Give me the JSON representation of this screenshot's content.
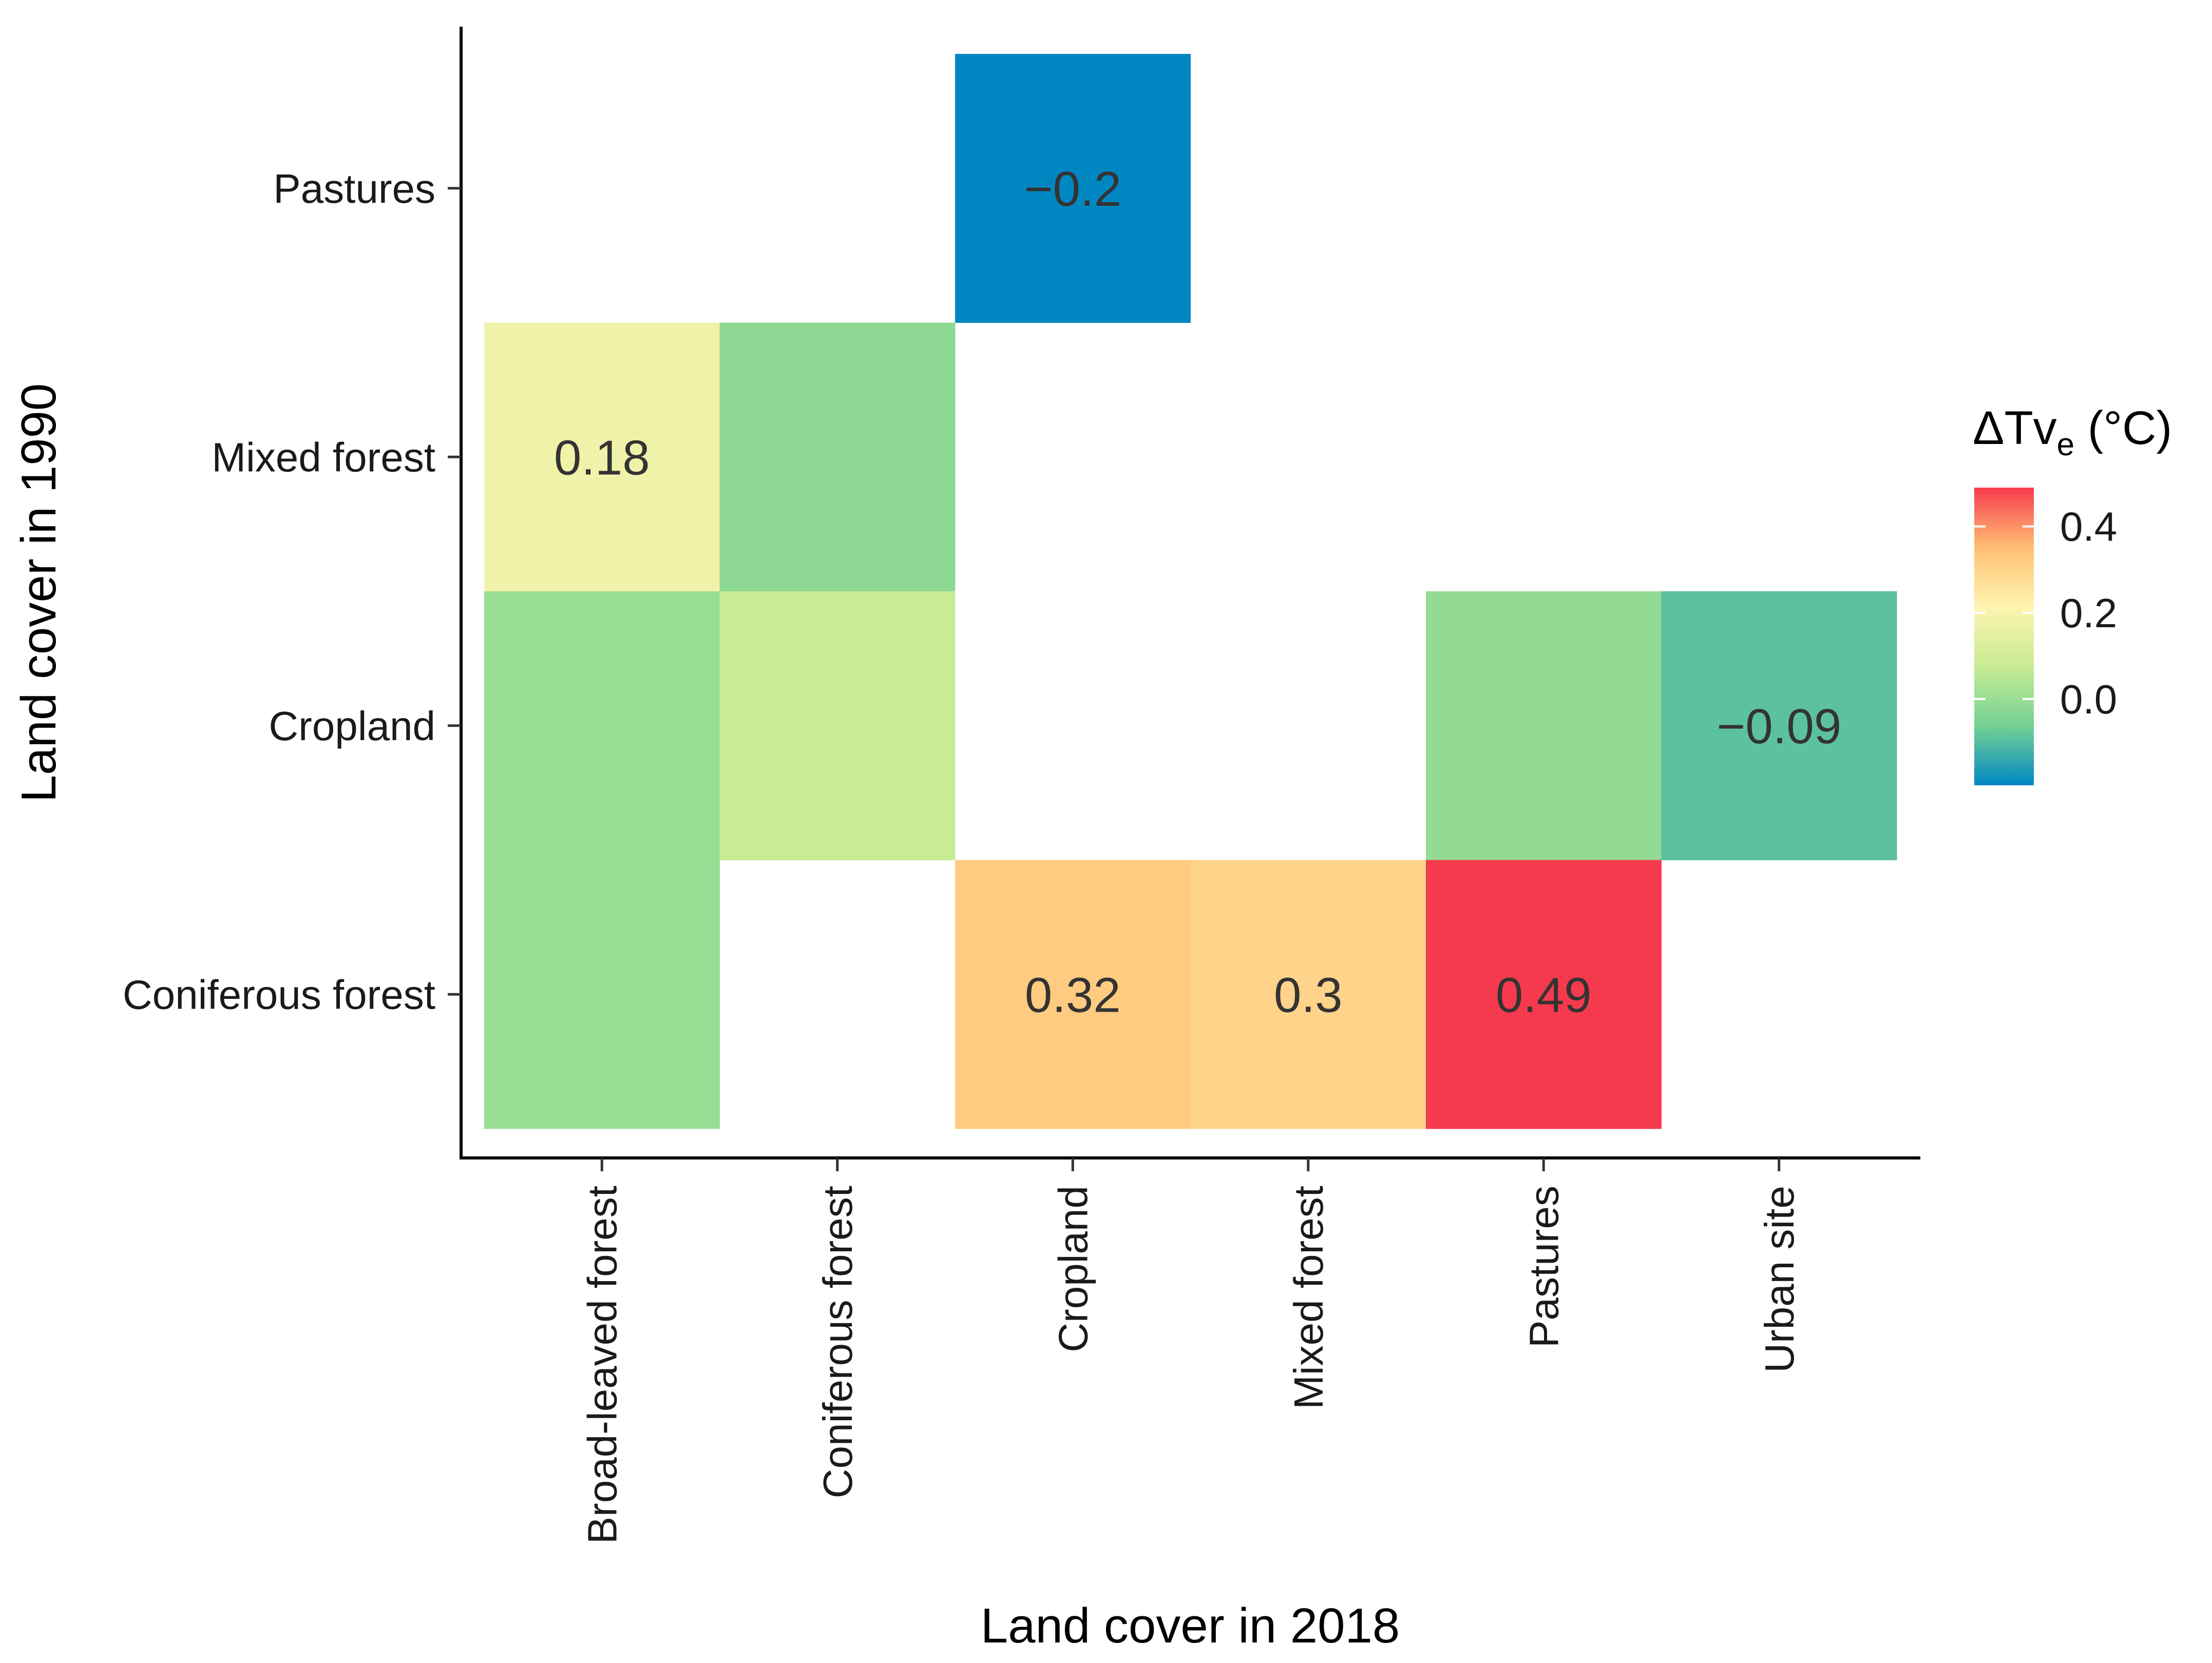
{
  "chart_data": {
    "type": "heatmap",
    "xlabel": "Land cover in 2018",
    "ylabel": "Land cover in 1990",
    "x_categories": [
      "Broad-leaved forest",
      "Coniferous forest",
      "Cropland",
      "Mixed forest",
      "Pastures",
      "Urban site"
    ],
    "y_categories": [
      "Coniferous forest",
      "Cropland",
      "Mixed forest",
      "Pastures"
    ],
    "cells": [
      {
        "x": "Cropland",
        "y": "Pastures",
        "value": -0.2,
        "label": "−0.2"
      },
      {
        "x": "Broad-leaved forest",
        "y": "Mixed forest",
        "value": 0.18,
        "label": "0.18"
      },
      {
        "x": "Coniferous forest",
        "y": "Mixed forest",
        "value": -0.02,
        "label": ""
      },
      {
        "x": "Broad-leaved forest",
        "y": "Cropland",
        "value": 0.0,
        "label": ""
      },
      {
        "x": "Coniferous forest",
        "y": "Cropland",
        "value": 0.08,
        "label": ""
      },
      {
        "x": "Pastures",
        "y": "Cropland",
        "value": -0.01,
        "label": ""
      },
      {
        "x": "Urban site",
        "y": "Cropland",
        "value": -0.09,
        "label": "−0.09"
      },
      {
        "x": "Broad-leaved forest",
        "y": "Coniferous forest",
        "value": 0.0,
        "label": ""
      },
      {
        "x": "Cropland",
        "y": "Coniferous forest",
        "value": 0.32,
        "label": "0.32"
      },
      {
        "x": "Mixed forest",
        "y": "Coniferous forest",
        "value": 0.3,
        "label": "0.3"
      },
      {
        "x": "Pastures",
        "y": "Coniferous forest",
        "value": 0.49,
        "label": "0.49"
      }
    ],
    "colorbar": {
      "title_main": "ΔTv",
      "title_sub": "e",
      "title_unit": " (°C)",
      "range": [
        -0.2,
        0.49
      ],
      "ticks": [
        0.4,
        0.2,
        0.0
      ],
      "tick_labels": [
        "0.4",
        "0.2",
        "0.0"
      ],
      "colors": [
        "#0087c2",
        "#74d194",
        "#c7eb93",
        "#fff4b0",
        "#ffbf73",
        "#f63a4d"
      ]
    },
    "legend_position": "right",
    "grid": false
  }
}
